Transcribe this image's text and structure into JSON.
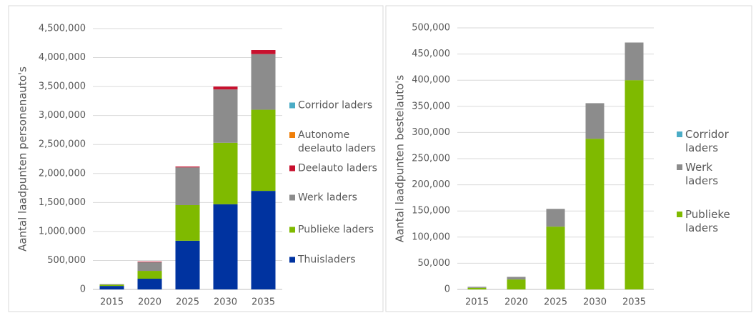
{
  "chart_data": [
    {
      "type": "bar",
      "stacked": true,
      "ylabel": "Aantal laadpunten personenauto's",
      "categories": [
        "2015",
        "2020",
        "2025",
        "2030",
        "2035"
      ],
      "series": [
        {
          "name": "Thuisladers",
          "color": "#0033a0",
          "values": [
            60000,
            185000,
            840000,
            1470000,
            1700000
          ]
        },
        {
          "name": "Publieke laders",
          "color": "#7fba00",
          "values": [
            20000,
            135000,
            615000,
            1060000,
            1400000
          ]
        },
        {
          "name": "Werk laders",
          "color": "#8c8c8c",
          "values": [
            10000,
            150000,
            650000,
            920000,
            960000
          ]
        },
        {
          "name": "Deelauto laders",
          "color": "#c8102e",
          "values": [
            0,
            10000,
            15000,
            50000,
            70000
          ]
        },
        {
          "name": "Autonome deelauto laders",
          "color": "#f07f09",
          "values": [
            0,
            0,
            0,
            0,
            0
          ]
        },
        {
          "name": "Corridor laders",
          "color": "#4bacc6",
          "values": [
            0,
            0,
            0,
            0,
            0
          ]
        }
      ],
      "ylim": [
        0,
        4500000
      ],
      "yticks": [
        0,
        {
          "value": 500000,
          "label": "500,000"
        },
        {
          "value": 1000000,
          "label": "1,000,000"
        },
        {
          "value": 1500000,
          "label": "1,500,000"
        },
        {
          "value": 2000000,
          "label": "2,000,000"
        },
        {
          "value": 2500000,
          "label": "2,500,000"
        },
        {
          "value": 3000000,
          "label": "3,000,000"
        },
        {
          "value": 3500000,
          "label": "3,500,000"
        },
        {
          "value": 4000000,
          "label": "4,000,000"
        },
        {
          "value": 4500000,
          "label": "4,500,000"
        }
      ],
      "grid": true,
      "legend": "right"
    },
    {
      "type": "bar",
      "stacked": true,
      "ylabel": "Aantal laadpunten bestelauto's",
      "categories": [
        "2015",
        "2020",
        "2025",
        "2030",
        "2035"
      ],
      "series": [
        {
          "name": "Publieke laders",
          "color": "#7fba00",
          "values": [
            3000,
            19000,
            120000,
            288000,
            400000
          ]
        },
        {
          "name": "Werk laders",
          "color": "#8c8c8c",
          "values": [
            2000,
            5000,
            34000,
            68000,
            72000
          ]
        },
        {
          "name": "Corridor laders",
          "color": "#4bacc6",
          "values": [
            0,
            0,
            0,
            0,
            0
          ]
        }
      ],
      "ylim": [
        0,
        500000
      ],
      "yticks": [
        0,
        {
          "value": 50000,
          "label": "50,000"
        },
        {
          "value": 100000,
          "label": "100,000"
        },
        {
          "value": 150000,
          "label": "150,000"
        },
        {
          "value": 200000,
          "label": "200,000"
        },
        {
          "value": 250000,
          "label": "250,000"
        },
        {
          "value": 300000,
          "label": "300,000"
        },
        {
          "value": 350000,
          "label": "350,000"
        },
        {
          "value": 400000,
          "label": "400,000"
        },
        {
          "value": 450000,
          "label": "450,000"
        },
        {
          "value": 500000,
          "label": "500,000"
        }
      ],
      "grid": true,
      "legend": "right"
    }
  ]
}
